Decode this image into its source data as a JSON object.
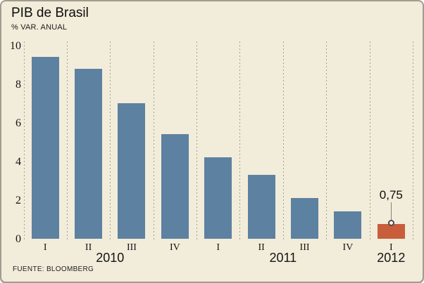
{
  "header": {
    "title": "PIB de Brasil",
    "subtitle": "% VAR. ANUAL",
    "source": "FUENTE: BLOOMBERG"
  },
  "chart_data": {
    "type": "bar",
    "title": "PIB de Brasil",
    "subtitle": "% VAR. ANUAL",
    "source": "FUENTE: BLOOMBERG",
    "ylabel": "% VAR. ANUAL",
    "ylim": [
      0,
      10
    ],
    "yticks": [
      0,
      2,
      4,
      6,
      8,
      10
    ],
    "categories": [
      "I",
      "II",
      "III",
      "IV",
      "I",
      "II",
      "III",
      "IV",
      "I"
    ],
    "values": [
      9.4,
      8.8,
      7.0,
      5.4,
      4.2,
      3.3,
      2.1,
      1.4,
      0.75
    ],
    "year_groups": [
      {
        "label": "2010",
        "span": [
          0,
          3
        ]
      },
      {
        "label": "2011",
        "span": [
          4,
          7
        ]
      },
      {
        "label": "2012",
        "span": [
          8,
          8
        ]
      }
    ],
    "highlight_index": 8,
    "annotation": {
      "text": "0,75",
      "index": 8
    },
    "grid": "vertical-dashed",
    "legend": "none",
    "colors": {
      "background": "#f2ecda",
      "bar": "#5d81a0",
      "highlight_bar": "#c85e3c",
      "gridline": "#a79e8f",
      "border": "#a09c8f"
    }
  }
}
